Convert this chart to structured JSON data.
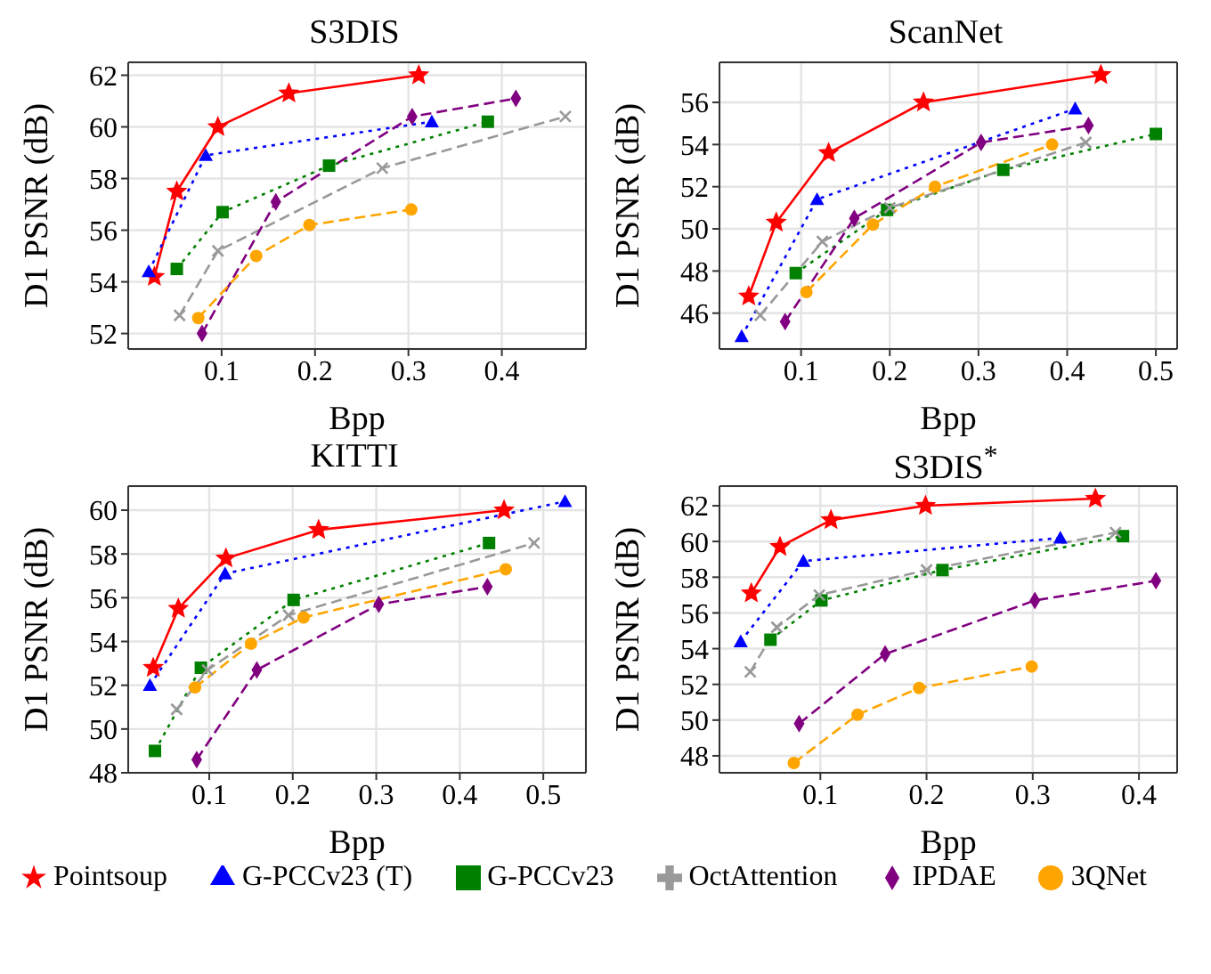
{
  "chart_data": [
    {
      "type": "line",
      "title": "S3DIS",
      "xlabel": "Bpp",
      "ylabel": "D1 PSNR (dB)",
      "xlim": [
        0.0,
        0.49
      ],
      "ylim": [
        51.4,
        62.5
      ],
      "xticks": [
        0.1,
        0.2,
        0.3,
        0.4
      ],
      "yticks": [
        52,
        54,
        56,
        58,
        60,
        62
      ],
      "grid": true,
      "series": [
        {
          "color": "#ff0000",
          "marker": "star",
          "line_style": "solid",
          "x": [
            0.028,
            0.052,
            0.096,
            0.172,
            0.311
          ],
          "values": [
            54.2,
            57.5,
            60.0,
            61.3,
            62.0
          ]
        },
        {
          "color": "#0000ff",
          "marker": "triangle",
          "line_style": "dotted",
          "x": [
            0.022,
            0.083,
            0.325
          ],
          "values": [
            54.4,
            58.9,
            60.2
          ]
        },
        {
          "color": "#008000",
          "marker": "square",
          "line_style": "dotted",
          "x": [
            0.052,
            0.101,
            0.215,
            0.385
          ],
          "values": [
            54.5,
            56.7,
            58.5,
            60.2
          ]
        },
        {
          "color": "#999999",
          "marker": "cross",
          "line_style": "dashed",
          "x": [
            0.055,
            0.096,
            0.272,
            0.468
          ],
          "values": [
            52.7,
            55.2,
            58.4,
            60.4
          ]
        },
        {
          "color": "#800080",
          "marker": "diamond",
          "line_style": "dashed",
          "x": [
            0.079,
            0.158,
            0.304,
            0.415
          ],
          "values": [
            52.0,
            57.1,
            60.4,
            61.1
          ]
        },
        {
          "color": "#ffa500",
          "marker": "circle",
          "line_style": "dashed",
          "x": [
            0.075,
            0.137,
            0.194,
            0.303
          ],
          "values": [
            52.6,
            55.0,
            56.2,
            56.8
          ]
        }
      ]
    },
    {
      "type": "line",
      "title": "ScanNet",
      "xlabel": "Bpp",
      "ylabel": "D1 PSNR (dB)",
      "xlim": [
        0.008,
        0.524
      ],
      "ylim": [
        44.3,
        57.9
      ],
      "xticks": [
        0.1,
        0.2,
        0.3,
        0.4,
        0.5
      ],
      "yticks": [
        46,
        48,
        50,
        52,
        54,
        56
      ],
      "grid": true,
      "series": [
        {
          "color": "#ff0000",
          "marker": "star",
          "line_style": "solid",
          "x": [
            0.041,
            0.072,
            0.131,
            0.238,
            0.438
          ],
          "values": [
            46.8,
            50.3,
            53.6,
            56.0,
            57.3
          ]
        },
        {
          "color": "#0000ff",
          "marker": "triangle",
          "line_style": "dotted",
          "x": [
            0.033,
            0.118,
            0.409
          ],
          "values": [
            44.9,
            51.4,
            55.7
          ]
        },
        {
          "color": "#008000",
          "marker": "square",
          "line_style": "dotted",
          "x": [
            0.094,
            0.197,
            0.328,
            0.5
          ],
          "values": [
            47.9,
            50.9,
            52.8,
            54.5
          ]
        },
        {
          "color": "#999999",
          "marker": "cross",
          "line_style": "dashed",
          "x": [
            0.054,
            0.124,
            0.2,
            0.421
          ],
          "values": [
            45.9,
            49.4,
            51.0,
            54.1
          ]
        },
        {
          "color": "#800080",
          "marker": "diamond",
          "line_style": "dashed",
          "x": [
            0.082,
            0.16,
            0.303,
            0.424
          ],
          "values": [
            45.6,
            50.5,
            54.1,
            54.9
          ]
        },
        {
          "color": "#ffa500",
          "marker": "circle",
          "line_style": "dashed",
          "x": [
            0.106,
            0.181,
            0.251,
            0.383
          ],
          "values": [
            47.0,
            50.2,
            52.0,
            54.0
          ]
        }
      ]
    },
    {
      "type": "line",
      "title": "KITTI",
      "xlabel": "Bpp",
      "ylabel": "D1 PSNR (dB)",
      "xlim": [
        0.003,
        0.551
      ],
      "ylim": [
        48,
        61.1
      ],
      "xticks": [
        0.1,
        0.2,
        0.3,
        0.4,
        0.5
      ],
      "yticks": [
        48,
        50,
        52,
        54,
        56,
        58,
        60
      ],
      "grid": true,
      "series": [
        {
          "color": "#ff0000",
          "marker": "star",
          "line_style": "solid",
          "x": [
            0.033,
            0.063,
            0.12,
            0.231,
            0.453
          ],
          "values": [
            52.8,
            55.5,
            57.8,
            59.1,
            60.0
          ]
        },
        {
          "color": "#0000ff",
          "marker": "triangle",
          "line_style": "dotted",
          "x": [
            0.029,
            0.119,
            0.526
          ],
          "values": [
            52.0,
            57.1,
            60.4
          ]
        },
        {
          "color": "#008000",
          "marker": "square",
          "line_style": "dotted",
          "x": [
            0.035,
            0.09,
            0.201,
            0.435
          ],
          "values": [
            49.0,
            52.8,
            55.9,
            58.5
          ]
        },
        {
          "color": "#999999",
          "marker": "cross",
          "line_style": "dashed",
          "x": [
            0.061,
            0.098,
            0.195,
            0.489
          ],
          "values": [
            50.9,
            52.7,
            55.2,
            58.5
          ]
        },
        {
          "color": "#800080",
          "marker": "diamond",
          "line_style": "dashed",
          "x": [
            0.085,
            0.157,
            0.303,
            0.433
          ],
          "values": [
            48.6,
            52.7,
            55.7,
            56.5
          ]
        },
        {
          "color": "#ffa500",
          "marker": "circle",
          "line_style": "dashed",
          "x": [
            0.083,
            0.15,
            0.213,
            0.455
          ],
          "values": [
            51.9,
            53.9,
            55.1,
            57.3
          ]
        }
      ]
    },
    {
      "type": "line",
      "title": "S3DIS$^{*}$",
      "xlabel": "Bpp",
      "ylabel": "D1 PSNR (dB)",
      "xlim": [
        0.005,
        0.436
      ],
      "ylim": [
        47.05,
        63.1
      ],
      "xticks": [
        0.1,
        0.2,
        0.3,
        0.4
      ],
      "yticks": [
        48,
        50,
        52,
        54,
        56,
        58,
        60,
        62
      ],
      "grid": true,
      "legend": "bottom",
      "series": [
        {
          "name": "Pointsoup",
          "color": "#ff0000",
          "marker": "star",
          "line_style": "solid",
          "x": [
            0.035,
            0.062,
            0.11,
            0.199,
            0.359
          ],
          "values": [
            57.1,
            59.7,
            61.2,
            62.0,
            62.4
          ]
        },
        {
          "name": "G-PCCv23 (T)",
          "color": "#0000ff",
          "marker": "triangle",
          "line_style": "dotted",
          "x": [
            0.025,
            0.084,
            0.326
          ],
          "values": [
            54.4,
            58.9,
            60.2
          ]
        },
        {
          "name": "G-PCCv23",
          "color": "#008000",
          "marker": "square",
          "line_style": "dotted",
          "x": [
            0.053,
            0.101,
            0.215,
            0.385
          ],
          "values": [
            54.5,
            56.7,
            58.4,
            60.3
          ]
        },
        {
          "name": "OctAttention",
          "color": "#999999",
          "marker": "cross",
          "line_style": "dashed",
          "x": [
            0.034,
            0.059,
            0.099,
            0.2,
            0.378
          ],
          "values": [
            52.7,
            55.2,
            57.0,
            58.4,
            60.5
          ]
        },
        {
          "name": "IPDAE",
          "color": "#800080",
          "marker": "diamond",
          "line_style": "dashed",
          "x": [
            0.08,
            0.161,
            0.302,
            0.416
          ],
          "values": [
            49.8,
            53.7,
            56.7,
            57.8
          ]
        },
        {
          "name": "3QNet",
          "color": "#ffa500",
          "marker": "circle",
          "line_style": "dashed",
          "x": [
            0.075,
            0.135,
            0.193,
            0.299
          ],
          "values": [
            47.6,
            50.3,
            51.8,
            53.0
          ]
        }
      ]
    }
  ]
}
